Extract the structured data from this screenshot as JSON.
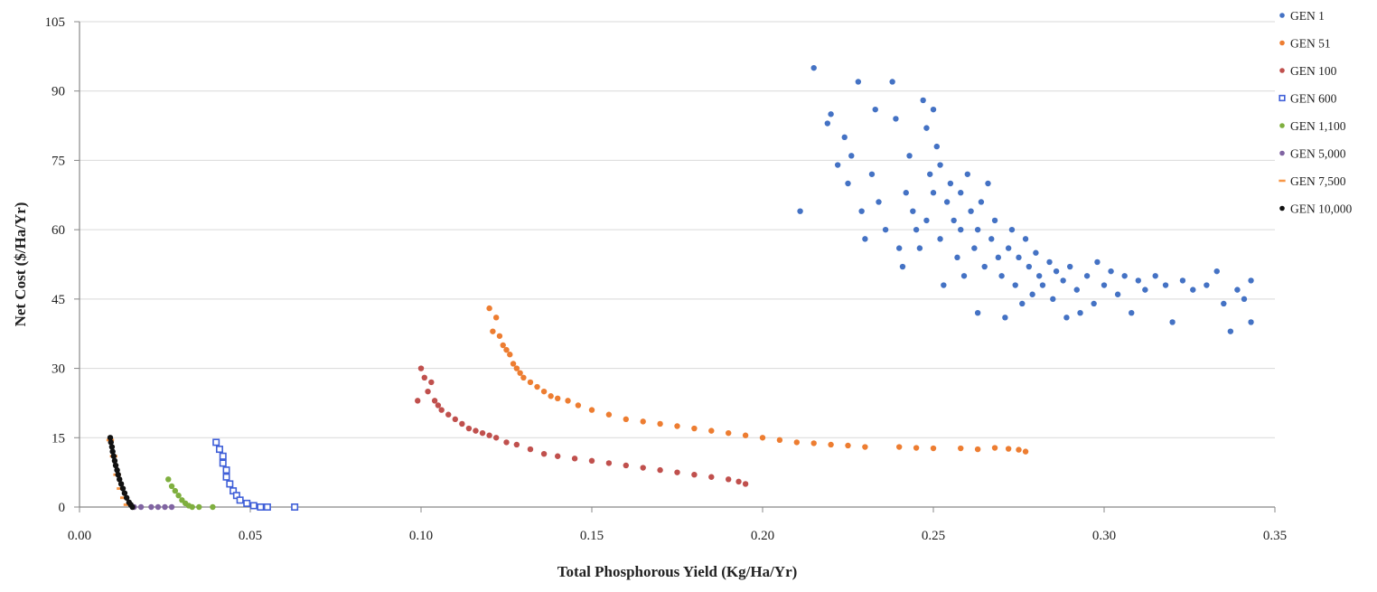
{
  "chart_data": {
    "type": "scatter",
    "title": "",
    "xlabel": "Total Phosphorous Yield (Kg/Ha/Yr)",
    "ylabel": "Net Cost ($/Ha/Yr)",
    "xlim": [
      0,
      0.35
    ],
    "ylim": [
      0,
      105
    ],
    "x_ticks": [
      "0.00",
      "0.05",
      "0.10",
      "0.15",
      "0.20",
      "0.25",
      "0.30",
      "0.35"
    ],
    "y_ticks": [
      "0",
      "15",
      "30",
      "45",
      "60",
      "75",
      "90",
      "105"
    ],
    "grid": "horizontal",
    "legend_position": "right",
    "series": [
      {
        "name": "GEN 1",
        "color": "#4472C4",
        "marker": "circle",
        "points": [
          [
            0.211,
            64
          ],
          [
            0.215,
            95
          ],
          [
            0.219,
            83
          ],
          [
            0.22,
            85
          ],
          [
            0.222,
            74
          ],
          [
            0.224,
            80
          ],
          [
            0.225,
            70
          ],
          [
            0.226,
            76
          ],
          [
            0.228,
            92
          ],
          [
            0.229,
            64
          ],
          [
            0.23,
            58
          ],
          [
            0.232,
            72
          ],
          [
            0.233,
            86
          ],
          [
            0.234,
            66
          ],
          [
            0.236,
            60
          ],
          [
            0.238,
            92
          ],
          [
            0.239,
            84
          ],
          [
            0.24,
            56
          ],
          [
            0.241,
            52
          ],
          [
            0.242,
            68
          ],
          [
            0.243,
            76
          ],
          [
            0.244,
            64
          ],
          [
            0.245,
            60
          ],
          [
            0.246,
            56
          ],
          [
            0.247,
            88
          ],
          [
            0.248,
            82
          ],
          [
            0.248,
            62
          ],
          [
            0.249,
            72
          ],
          [
            0.25,
            86
          ],
          [
            0.25,
            68
          ],
          [
            0.251,
            78
          ],
          [
            0.252,
            58
          ],
          [
            0.252,
            74
          ],
          [
            0.253,
            48
          ],
          [
            0.254,
            66
          ],
          [
            0.255,
            70
          ],
          [
            0.256,
            62
          ],
          [
            0.257,
            54
          ],
          [
            0.258,
            68
          ],
          [
            0.258,
            60
          ],
          [
            0.259,
            50
          ],
          [
            0.26,
            72
          ],
          [
            0.261,
            64
          ],
          [
            0.262,
            56
          ],
          [
            0.263,
            42
          ],
          [
            0.263,
            60
          ],
          [
            0.264,
            66
          ],
          [
            0.265,
            52
          ],
          [
            0.266,
            70
          ],
          [
            0.267,
            58
          ],
          [
            0.268,
            62
          ],
          [
            0.269,
            54
          ],
          [
            0.27,
            50
          ],
          [
            0.271,
            41
          ],
          [
            0.272,
            56
          ],
          [
            0.273,
            60
          ],
          [
            0.274,
            48
          ],
          [
            0.275,
            54
          ],
          [
            0.276,
            44
          ],
          [
            0.277,
            58
          ],
          [
            0.278,
            52
          ],
          [
            0.279,
            46
          ],
          [
            0.28,
            55
          ],
          [
            0.281,
            50
          ],
          [
            0.282,
            48
          ],
          [
            0.284,
            53
          ],
          [
            0.285,
            45
          ],
          [
            0.286,
            51
          ],
          [
            0.288,
            49
          ],
          [
            0.289,
            41
          ],
          [
            0.29,
            52
          ],
          [
            0.292,
            47
          ],
          [
            0.293,
            42
          ],
          [
            0.295,
            50
          ],
          [
            0.297,
            44
          ],
          [
            0.298,
            53
          ],
          [
            0.3,
            48
          ],
          [
            0.302,
            51
          ],
          [
            0.304,
            46
          ],
          [
            0.306,
            50
          ],
          [
            0.308,
            42
          ],
          [
            0.31,
            49
          ],
          [
            0.312,
            47
          ],
          [
            0.315,
            50
          ],
          [
            0.318,
            48
          ],
          [
            0.32,
            40
          ],
          [
            0.323,
            49
          ],
          [
            0.326,
            47
          ],
          [
            0.33,
            48
          ],
          [
            0.333,
            51
          ],
          [
            0.335,
            44
          ],
          [
            0.337,
            38
          ],
          [
            0.339,
            47
          ],
          [
            0.341,
            45
          ],
          [
            0.343,
            49
          ],
          [
            0.343,
            40
          ]
        ]
      },
      {
        "name": "GEN 51",
        "color": "#ED7D31",
        "marker": "circle",
        "points": [
          [
            0.12,
            43
          ],
          [
            0.121,
            38
          ],
          [
            0.122,
            41
          ],
          [
            0.123,
            37
          ],
          [
            0.124,
            35
          ],
          [
            0.125,
            34
          ],
          [
            0.126,
            33
          ],
          [
            0.127,
            31
          ],
          [
            0.128,
            30
          ],
          [
            0.129,
            29
          ],
          [
            0.13,
            28
          ],
          [
            0.132,
            27
          ],
          [
            0.134,
            26
          ],
          [
            0.136,
            25
          ],
          [
            0.138,
            24
          ],
          [
            0.14,
            23.5
          ],
          [
            0.143,
            23
          ],
          [
            0.146,
            22
          ],
          [
            0.15,
            21
          ],
          [
            0.155,
            20
          ],
          [
            0.16,
            19
          ],
          [
            0.165,
            18.5
          ],
          [
            0.17,
            18
          ],
          [
            0.175,
            17.5
          ],
          [
            0.18,
            17
          ],
          [
            0.185,
            16.5
          ],
          [
            0.19,
            16
          ],
          [
            0.195,
            15.5
          ],
          [
            0.2,
            15
          ],
          [
            0.205,
            14.5
          ],
          [
            0.21,
            14
          ],
          [
            0.215,
            13.8
          ],
          [
            0.22,
            13.5
          ],
          [
            0.225,
            13.3
          ],
          [
            0.23,
            13
          ],
          [
            0.24,
            13
          ],
          [
            0.245,
            12.8
          ],
          [
            0.25,
            12.7
          ],
          [
            0.258,
            12.7
          ],
          [
            0.263,
            12.5
          ],
          [
            0.268,
            12.8
          ],
          [
            0.272,
            12.6
          ],
          [
            0.275,
            12.4
          ],
          [
            0.277,
            12.0
          ]
        ]
      },
      {
        "name": "GEN 100",
        "color": "#C0504D",
        "marker": "circle",
        "points": [
          [
            0.099,
            23
          ],
          [
            0.1,
            30
          ],
          [
            0.101,
            28
          ],
          [
            0.102,
            25
          ],
          [
            0.103,
            27
          ],
          [
            0.104,
            23
          ],
          [
            0.105,
            22
          ],
          [
            0.106,
            21
          ],
          [
            0.108,
            20
          ],
          [
            0.11,
            19
          ],
          [
            0.112,
            18
          ],
          [
            0.114,
            17
          ],
          [
            0.116,
            16.5
          ],
          [
            0.118,
            16
          ],
          [
            0.12,
            15.5
          ],
          [
            0.122,
            15
          ],
          [
            0.125,
            14
          ],
          [
            0.128,
            13.5
          ],
          [
            0.132,
            12.5
          ],
          [
            0.136,
            11.5
          ],
          [
            0.14,
            11
          ],
          [
            0.145,
            10.5
          ],
          [
            0.15,
            10
          ],
          [
            0.155,
            9.5
          ],
          [
            0.16,
            9
          ],
          [
            0.165,
            8.5
          ],
          [
            0.17,
            8
          ],
          [
            0.175,
            7.5
          ],
          [
            0.18,
            7
          ],
          [
            0.185,
            6.5
          ],
          [
            0.19,
            6
          ],
          [
            0.193,
            5.5
          ],
          [
            0.195,
            5
          ]
        ]
      },
      {
        "name": "GEN 600",
        "color": "#3F5FD8",
        "marker": "square",
        "points": [
          [
            0.04,
            14
          ],
          [
            0.041,
            12.5
          ],
          [
            0.042,
            11
          ],
          [
            0.042,
            9.5
          ],
          [
            0.043,
            8
          ],
          [
            0.043,
            6.5
          ],
          [
            0.044,
            5
          ],
          [
            0.045,
            3.5
          ],
          [
            0.046,
            2.5
          ],
          [
            0.047,
            1.5
          ],
          [
            0.049,
            0.8
          ],
          [
            0.051,
            0.3
          ],
          [
            0.053,
            0
          ],
          [
            0.055,
            0
          ],
          [
            0.063,
            0
          ]
        ]
      },
      {
        "name": "GEN 1,100",
        "color": "#7FAF3F",
        "marker": "circle",
        "points": [
          [
            0.026,
            6
          ],
          [
            0.027,
            4.5
          ],
          [
            0.028,
            3.5
          ],
          [
            0.029,
            2.5
          ],
          [
            0.03,
            1.5
          ],
          [
            0.031,
            0.8
          ],
          [
            0.032,
            0.3
          ],
          [
            0.033,
            0
          ],
          [
            0.035,
            0
          ],
          [
            0.039,
            0
          ]
        ]
      },
      {
        "name": "GEN 5,000",
        "color": "#8064A2",
        "marker": "circle",
        "points": [
          [
            0.016,
            0
          ],
          [
            0.018,
            0
          ],
          [
            0.021,
            0
          ],
          [
            0.023,
            0
          ],
          [
            0.025,
            0
          ],
          [
            0.027,
            0
          ]
        ]
      },
      {
        "name": "GEN 7,500",
        "color": "#F79646",
        "marker": "dash",
        "points": [
          [
            0.009,
            14.5
          ],
          [
            0.01,
            11
          ],
          [
            0.011,
            7
          ],
          [
            0.012,
            4
          ],
          [
            0.013,
            2
          ],
          [
            0.014,
            0.5
          ]
        ]
      },
      {
        "name": "GEN 10,000",
        "color": "#111111",
        "marker": "circle",
        "points": [
          [
            0.009,
            15
          ],
          [
            0.0092,
            14
          ],
          [
            0.0095,
            13
          ],
          [
            0.0097,
            12
          ],
          [
            0.01,
            11
          ],
          [
            0.0103,
            10
          ],
          [
            0.0106,
            9
          ],
          [
            0.011,
            8
          ],
          [
            0.0113,
            7
          ],
          [
            0.0117,
            6
          ],
          [
            0.0122,
            5
          ],
          [
            0.0127,
            4
          ],
          [
            0.0132,
            3
          ],
          [
            0.0138,
            2
          ],
          [
            0.0145,
            1
          ],
          [
            0.015,
            0.5
          ],
          [
            0.0155,
            0
          ]
        ]
      }
    ]
  }
}
